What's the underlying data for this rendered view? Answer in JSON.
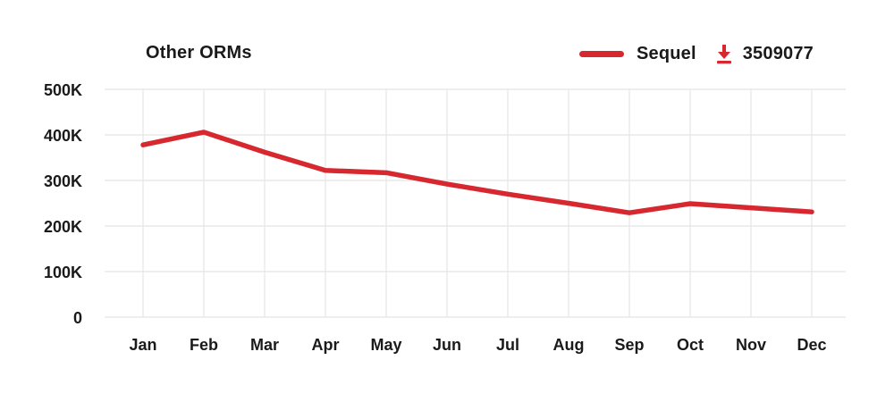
{
  "header": {
    "title": "Other ORMs"
  },
  "legend": {
    "series_label": "Sequel",
    "download_count": "3509077",
    "download_icon": "download-icon"
  },
  "colors": {
    "series_red": "#d7272f",
    "grid": "#e9e9e9",
    "text": "#1a1a1a",
    "background": "#ffffff"
  },
  "chart_data": {
    "type": "line",
    "title": "Other ORMs",
    "categories": [
      "Jan",
      "Feb",
      "Mar",
      "Apr",
      "May",
      "Jun",
      "Jul",
      "Aug",
      "Sep",
      "Oct",
      "Nov",
      "Dec"
    ],
    "series": [
      {
        "name": "Sequel",
        "color": "#d7272f",
        "values": [
          378000,
          406000,
          362000,
          322000,
          317000,
          292000,
          270000,
          250000,
          229000,
          249000,
          240000,
          231000
        ]
      }
    ],
    "annotations": [
      {
        "label": "download-count",
        "value": "3509077"
      }
    ],
    "xlabel": "",
    "ylabel": "",
    "ylim": [
      0,
      500000
    ],
    "y_ticks": {
      "values": [
        0,
        100000,
        200000,
        300000,
        400000,
        500000
      ],
      "labels": [
        "0",
        "100K",
        "200K",
        "300K",
        "400K",
        "500K"
      ]
    },
    "grid": true,
    "legend_position": "top-right"
  }
}
